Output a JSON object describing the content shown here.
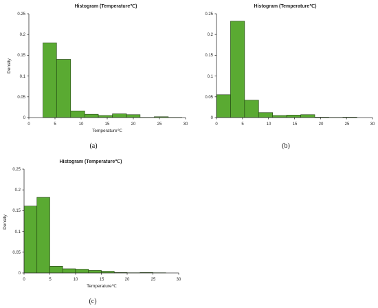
{
  "colors": {
    "bar": "#5aaa32",
    "bar_edge": "#1e3d0f",
    "axis": "#333333"
  },
  "chart_data": [
    {
      "type": "bar",
      "title": "Histogram  (Temperature℃)",
      "xlabel": "Temperature℃",
      "ylabel": "Density",
      "xlim": [
        0,
        30
      ],
      "ylim": [
        0,
        0.25
      ],
      "xticks": [
        "0",
        "5",
        "10",
        "15",
        "20",
        "25",
        "30"
      ],
      "yticks": [
        "0",
        "0.05",
        "0.1",
        "0.15",
        "0.2",
        "0.25"
      ],
      "bins": [
        {
          "x0": 2.7,
          "x1": 5.3,
          "value": 0.18
        },
        {
          "x0": 5.3,
          "x1": 8.0,
          "value": 0.14
        },
        {
          "x0": 8.0,
          "x1": 10.7,
          "value": 0.016
        },
        {
          "x0": 10.7,
          "x1": 13.3,
          "value": 0.008
        },
        {
          "x0": 13.3,
          "x1": 16.0,
          "value": 0.005
        },
        {
          "x0": 16.0,
          "x1": 18.7,
          "value": 0.009
        },
        {
          "x0": 18.7,
          "x1": 21.3,
          "value": 0.007
        },
        {
          "x0": 21.3,
          "x1": 24.0,
          "value": 0.0005
        },
        {
          "x0": 24.0,
          "x1": 26.7,
          "value": 0.002
        },
        {
          "x0": 26.7,
          "x1": 29.3,
          "value": 0.0005
        }
      ],
      "caption": "(a)"
    },
    {
      "type": "bar",
      "title": "Histogram  (Temperature℃)",
      "xlabel": "",
      "ylabel": "",
      "xlim": [
        0,
        30
      ],
      "ylim": [
        0,
        0.25
      ],
      "xticks": [
        "0",
        "5",
        "10",
        "15",
        "20",
        "25",
        "30"
      ],
      "yticks": [
        "0",
        "0.05",
        "0.1",
        "0.15",
        "0.2",
        "0.25"
      ],
      "bins": [
        {
          "x0": 0.0,
          "x1": 2.7,
          "value": 0.055
        },
        {
          "x0": 2.7,
          "x1": 5.4,
          "value": 0.232
        },
        {
          "x0": 5.4,
          "x1": 8.1,
          "value": 0.042
        },
        {
          "x0": 8.1,
          "x1": 10.8,
          "value": 0.012
        },
        {
          "x0": 10.8,
          "x1": 13.5,
          "value": 0.005
        },
        {
          "x0": 13.5,
          "x1": 16.2,
          "value": 0.006
        },
        {
          "x0": 16.2,
          "x1": 18.9,
          "value": 0.007
        },
        {
          "x0": 18.9,
          "x1": 21.6,
          "value": 0.001
        },
        {
          "x0": 21.6,
          "x1": 24.3,
          "value": 0.0005
        },
        {
          "x0": 24.3,
          "x1": 27.0,
          "value": 0.001
        }
      ],
      "caption": "(b)"
    },
    {
      "type": "bar",
      "title": "Histogram  (Temperature℃)",
      "xlabel": "Temperature℃",
      "ylabel": "Density",
      "xlim": [
        0,
        30
      ],
      "ylim": [
        0,
        0.25
      ],
      "xticks": [
        "0",
        "5",
        "10",
        "15",
        "20",
        "25",
        "30"
      ],
      "yticks": [
        "0",
        "0.05",
        "0.1",
        "0.15",
        "0.2",
        "0.25"
      ],
      "bins": [
        {
          "x0": 0.0,
          "x1": 2.5,
          "value": 0.161
        },
        {
          "x0": 2.5,
          "x1": 5.0,
          "value": 0.182
        },
        {
          "x0": 5.0,
          "x1": 7.5,
          "value": 0.016
        },
        {
          "x0": 7.5,
          "x1": 10.0,
          "value": 0.01
        },
        {
          "x0": 10.0,
          "x1": 12.5,
          "value": 0.009
        },
        {
          "x0": 12.5,
          "x1": 15.0,
          "value": 0.006
        },
        {
          "x0": 15.0,
          "x1": 17.5,
          "value": 0.004
        },
        {
          "x0": 17.5,
          "x1": 20.0,
          "value": 0.001
        },
        {
          "x0": 20.0,
          "x1": 22.5,
          "value": 0.0005
        },
        {
          "x0": 22.5,
          "x1": 25.0,
          "value": 0.001
        },
        {
          "x0": 25.0,
          "x1": 27.5,
          "value": 0.0005
        }
      ],
      "caption": "(c)"
    }
  ]
}
